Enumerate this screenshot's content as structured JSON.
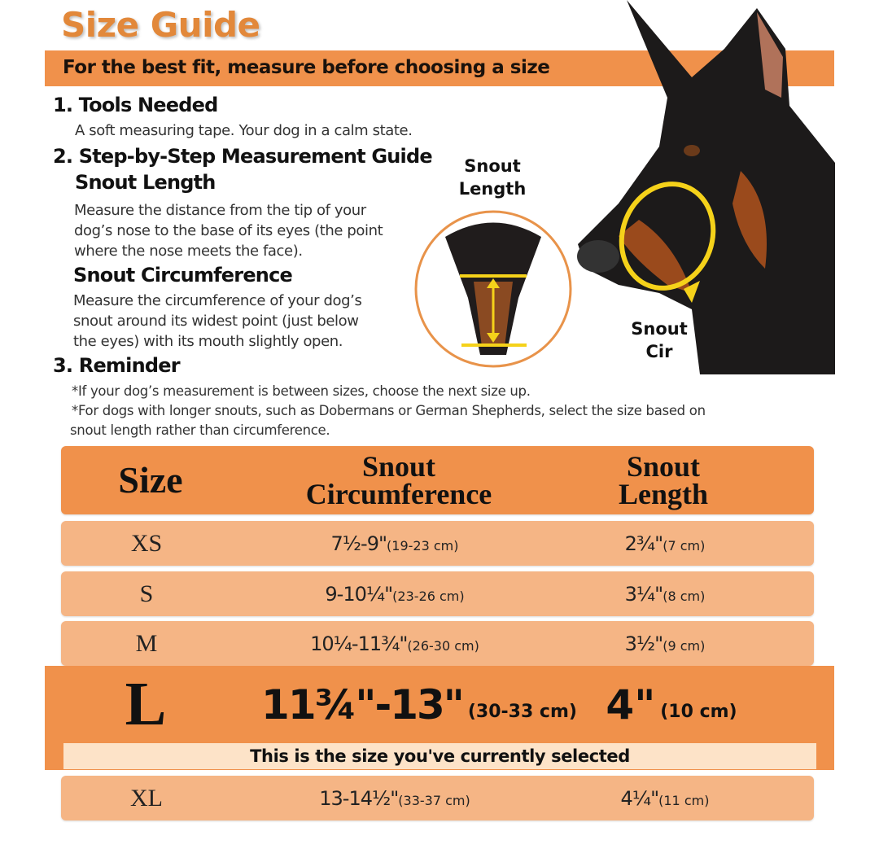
{
  "title": "Size Guide",
  "banner": "For the best fit, measure before choosing a size",
  "steps": {
    "s1_title": "1. Tools Needed",
    "s1_text": "A soft measuring tape. Your dog in a calm state.",
    "s2_title": "2. Step-by-Step Measurement Guide",
    "length_title": "Snout Length",
    "length_text": [
      "Measure the distance from the tip of your",
      "dog’s nose to the base of its eyes (the point",
      "where the nose meets the face)."
    ],
    "circ_title": "Snout Circumference",
    "circ_text": [
      "Measure the circumference of your dog’s",
      "snout around its widest point (just below",
      "the eyes) with its mouth slightly open."
    ],
    "s3_title": "3. Reminder",
    "reminders": [
      "*If your dog’s measurement is between sizes, choose the next size up.",
      "*For dogs with longer snouts, such as Dobermans or German Shepherds, select the size based on",
      "snout length rather than circumference."
    ]
  },
  "diagram": {
    "length_label": [
      "Snout",
      "Length"
    ],
    "cir_label": [
      "Snout",
      "Cir"
    ]
  },
  "table": {
    "headers": {
      "size": "Size",
      "circ": [
        "Snout",
        "Circumference"
      ],
      "length": [
        "Snout",
        "Length"
      ]
    },
    "rows": [
      {
        "size": "XS",
        "circ": "7½-9\"",
        "circ_cm": "(19-23 cm)",
        "len": "2¾\"",
        "len_cm": "(7 cm)"
      },
      {
        "size": "S",
        "circ": "9-10¼\"",
        "circ_cm": "(23-26 cm)",
        "len": "3¼\"",
        "len_cm": "(8 cm)"
      },
      {
        "size": "M",
        "circ": "10¼-11¾\"",
        "circ_cm": "(26-30 cm)",
        "len": "3½\"",
        "len_cm": "(9 cm)"
      },
      {
        "size": "L",
        "circ": "11¾\"-13\"",
        "circ_cm": "(30-33 cm)",
        "len": "4\"",
        "len_cm": "(10 cm)",
        "selected": true
      },
      {
        "size": "XL",
        "circ": "13-14½\"",
        "circ_cm": "(33-37 cm)",
        "len": "4¼\"",
        "len_cm": "(11 cm)"
      }
    ],
    "selected_note": "This is the size you've currently selected"
  },
  "colors": {
    "accent": "#f0914b",
    "title": "#e2883a",
    "row": "#f5b585",
    "note": "#fde3c8",
    "tape": "#f5d21a"
  }
}
